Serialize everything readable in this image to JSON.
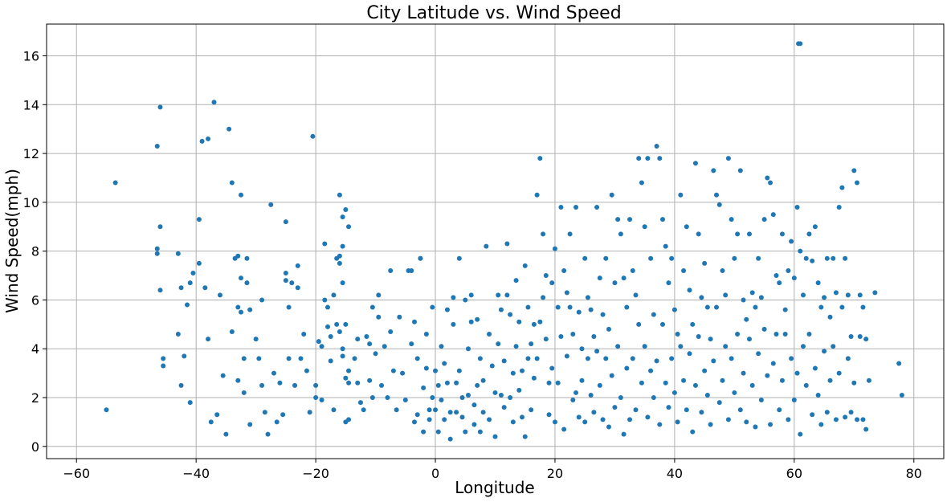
{
  "chart_data": {
    "type": "scatter",
    "title": "City Latitude vs. Wind Speed",
    "xlabel": "Longitude",
    "ylabel": "Wind Speed(mph)",
    "xlim": [
      -65,
      85
    ],
    "ylim": [
      -0.5,
      17.3
    ],
    "xticks": [
      -60,
      -40,
      -20,
      0,
      20,
      40,
      60,
      80
    ],
    "yticks": [
      0,
      2,
      4,
      6,
      8,
      10,
      12,
      14,
      16
    ],
    "grid": true,
    "marker_color": "#1f77b4",
    "points": [
      [
        -55,
        1.5
      ],
      [
        -53.5,
        10.8
      ],
      [
        -46.5,
        12.3
      ],
      [
        -46.5,
        8.1
      ],
      [
        -46.5,
        7.9
      ],
      [
        -46,
        13.9
      ],
      [
        -46,
        9.0
      ],
      [
        -46,
        6.4
      ],
      [
        -45.5,
        3.6
      ],
      [
        -45.5,
        3.3
      ],
      [
        -43,
        7.9
      ],
      [
        -43,
        4.6
      ],
      [
        -42.5,
        6.5
      ],
      [
        -42.5,
        2.5
      ],
      [
        -42,
        3.7
      ],
      [
        -41.5,
        5.8
      ],
      [
        -41,
        6.7
      ],
      [
        -41,
        1.8
      ],
      [
        -40.5,
        7.1
      ],
      [
        -39.5,
        9.3
      ],
      [
        -39.5,
        7.5
      ],
      [
        -39,
        12.5
      ],
      [
        -38.5,
        6.5
      ],
      [
        -38,
        12.6
      ],
      [
        -38,
        4.4
      ],
      [
        -37.5,
        1.0
      ],
      [
        -37,
        14.1
      ],
      [
        -36.5,
        1.3
      ],
      [
        -36,
        6.2
      ],
      [
        -35.5,
        2.9
      ],
      [
        -35,
        0.5
      ],
      [
        -34.5,
        13.0
      ],
      [
        -34,
        10.8
      ],
      [
        -34,
        4.7
      ],
      [
        -33.5,
        7.7
      ],
      [
        -33,
        7.8
      ],
      [
        -33,
        5.7
      ],
      [
        -33,
        2.7
      ],
      [
        -32.5,
        10.3
      ],
      [
        -32.5,
        6.9
      ],
      [
        -32.5,
        5.5
      ],
      [
        -32,
        3.6
      ],
      [
        -32,
        2.2
      ],
      [
        -31.5,
        7.7
      ],
      [
        -31.5,
        6.7
      ],
      [
        -31,
        5.6
      ],
      [
        -31,
        0.9
      ],
      [
        -30,
        4.4
      ],
      [
        -29.5,
        3.6
      ],
      [
        -29,
        6.0
      ],
      [
        -29,
        2.5
      ],
      [
        -28.5,
        1.4
      ],
      [
        -28,
        0.5
      ],
      [
        -27.5,
        9.9
      ],
      [
        -27,
        3.0
      ],
      [
        -26.5,
        1.0
      ],
      [
        -26,
        2.6
      ],
      [
        -25.5,
        1.3
      ],
      [
        -25,
        9.2
      ],
      [
        -25,
        7.1
      ],
      [
        -25,
        6.8
      ],
      [
        -24.5,
        5.7
      ],
      [
        -24.5,
        3.6
      ],
      [
        -24,
        6.7
      ],
      [
        -23.5,
        2.5
      ],
      [
        -23,
        7.4
      ],
      [
        -23,
        6.5
      ],
      [
        -22.5,
        3.6
      ],
      [
        -22,
        4.6
      ],
      [
        -21.5,
        3.1
      ],
      [
        -21,
        1.4
      ],
      [
        -20.5,
        12.7
      ],
      [
        -20,
        2.5
      ],
      [
        -20,
        2.0
      ],
      [
        -19.5,
        4.3
      ],
      [
        -19,
        4.1
      ],
      [
        -19,
        1.9
      ],
      [
        -18.5,
        8.3
      ],
      [
        -18.5,
        6.0
      ],
      [
        -18,
        5.7
      ],
      [
        -18,
        4.9
      ],
      [
        -17.5,
        4.5
      ],
      [
        -17.5,
        3.5
      ],
      [
        -17,
        6.2
      ],
      [
        -17,
        1.5
      ],
      [
        -16.5,
        7.7
      ],
      [
        -16.5,
        5.0
      ],
      [
        -16,
        10.3
      ],
      [
        -16,
        7.8
      ],
      [
        -16,
        7.5
      ],
      [
        -16,
        4.7
      ],
      [
        -15.5,
        9.4
      ],
      [
        -15.5,
        8.2
      ],
      [
        -15.5,
        6.7
      ],
      [
        -15.5,
        4.0
      ],
      [
        -15.5,
        3.7
      ],
      [
        -15,
        9.7
      ],
      [
        -15,
        5.0
      ],
      [
        -15,
        2.8
      ],
      [
        -15,
        1.0
      ],
      [
        -14.5,
        9.0
      ],
      [
        -14.5,
        3.1
      ],
      [
        -14.5,
        2.6
      ],
      [
        -14.5,
        1.1
      ],
      [
        -13.5,
        3.6
      ],
      [
        -13,
        2.6
      ],
      [
        -13,
        4.4
      ],
      [
        -12.5,
        1.8
      ],
      [
        -12,
        1.5
      ],
      [
        -11.5,
        4.5
      ],
      [
        -11,
        4.2
      ],
      [
        -11,
        2.7
      ],
      [
        -10.5,
        5.7
      ],
      [
        -10.5,
        2.0
      ],
      [
        -10,
        3.8
      ],
      [
        -9.5,
        6.2
      ],
      [
        -9.5,
        5.3
      ],
      [
        -9,
        2.5
      ],
      [
        -8.5,
        4.1
      ],
      [
        -8,
        2.0
      ],
      [
        -7.5,
        7.2
      ],
      [
        -7.5,
        4.7
      ],
      [
        -7,
        3.1
      ],
      [
        -6.5,
        1.5
      ],
      [
        -6,
        5.3
      ],
      [
        -5.5,
        3.0
      ],
      [
        -5,
        1.9
      ],
      [
        -4.5,
        7.2
      ],
      [
        -4,
        7.2
      ],
      [
        -4,
        4.2
      ],
      [
        -3.5,
        5.1
      ],
      [
        -3.5,
        1.0
      ],
      [
        -3,
        3.6
      ],
      [
        -3,
        1.3
      ],
      [
        -2.5,
        7.7
      ],
      [
        -2.5,
        7.7
      ],
      [
        -2,
        2.4
      ],
      [
        -2,
        0.6
      ],
      [
        -1.5,
        4.6
      ],
      [
        -1.5,
        3.2
      ],
      [
        -1,
        1.5
      ],
      [
        -1,
        1.1
      ],
      [
        -0.5,
        2.0
      ],
      [
        -0.5,
        5.7
      ],
      [
        0,
        3.1
      ],
      [
        0,
        1.5
      ],
      [
        0.5,
        2.5
      ],
      [
        0.5,
        0.6
      ],
      [
        1,
        4.1
      ],
      [
        1,
        1.9
      ],
      [
        1.5,
        3.4
      ],
      [
        1.5,
        1.1
      ],
      [
        2,
        5.6
      ],
      [
        2,
        2.6
      ],
      [
        2.5,
        1.4
      ],
      [
        2.5,
        0.3
      ],
      [
        3,
        6.1
      ],
      [
        3,
        5.0
      ],
      [
        3.5,
        2.6
      ],
      [
        3.5,
        1.4
      ],
      [
        4,
        7.7
      ],
      [
        4,
        3.1
      ],
      [
        4.5,
        2.0
      ],
      [
        4.5,
        1.2
      ],
      [
        5,
        6.0
      ],
      [
        5,
        0.6
      ],
      [
        5.5,
        4.0
      ],
      [
        5.5,
        2.1
      ],
      [
        6,
        6.2
      ],
      [
        6,
        5.1
      ],
      [
        6.5,
        1.7
      ],
      [
        6.5,
        0.9
      ],
      [
        7,
        5.2
      ],
      [
        7,
        2.5
      ],
      [
        7.5,
        3.6
      ],
      [
        7.5,
        0.6
      ],
      [
        8,
        2.7
      ],
      [
        8,
        1.4
      ],
      [
        8.5,
        8.2
      ],
      [
        9,
        4.6
      ],
      [
        9,
        1.1
      ],
      [
        9.5,
        3.3
      ],
      [
        10,
        2.2
      ],
      [
        10,
        0.4
      ],
      [
        10.5,
        6.2
      ],
      [
        10.5,
        4.2
      ],
      [
        11,
        5.6
      ],
      [
        11,
        2.1
      ],
      [
        11.5,
        3.5
      ],
      [
        11.5,
        1.6
      ],
      [
        12,
        8.3
      ],
      [
        12,
        6.2
      ],
      [
        12.5,
        5.4
      ],
      [
        12.5,
        2.0
      ],
      [
        13,
        3.0
      ],
      [
        13,
        1.0
      ],
      [
        13.5,
        6.8
      ],
      [
        13.5,
        4.1
      ],
      [
        14,
        5.1
      ],
      [
        14,
        2.3
      ],
      [
        14.5,
        3.1
      ],
      [
        14.5,
        1.2
      ],
      [
        15,
        7.4
      ],
      [
        15,
        0.4
      ],
      [
        15.5,
        5.7
      ],
      [
        15.5,
        3.6
      ],
      [
        16,
        4.2
      ],
      [
        16,
        1.5
      ],
      [
        16.5,
        5.0
      ],
      [
        16.5,
        2.8
      ],
      [
        17,
        10.3
      ],
      [
        17,
        3.6
      ],
      [
        17.5,
        11.8
      ],
      [
        17.5,
        5.1
      ],
      [
        18,
        8.7
      ],
      [
        18,
        6.1
      ],
      [
        18.5,
        7.0
      ],
      [
        18.5,
        4.4
      ],
      [
        19,
        2.6
      ],
      [
        19,
        1.3
      ],
      [
        19.5,
        6.7
      ],
      [
        19.5,
        3.2
      ],
      [
        20,
        8.1
      ],
      [
        20,
        1.0
      ],
      [
        20.5,
        5.7
      ],
      [
        20.5,
        2.6
      ],
      [
        21,
        9.8
      ],
      [
        21,
        4.5
      ],
      [
        21.5,
        7.2
      ],
      [
        21.5,
        0.7
      ],
      [
        22,
        6.3
      ],
      [
        22,
        3.7
      ],
      [
        22.5,
        8.7
      ],
      [
        22.5,
        5.7
      ],
      [
        23,
        4.6
      ],
      [
        23,
        1.9
      ],
      [
        23.5,
        9.8
      ],
      [
        23.5,
        2.2
      ],
      [
        24,
        5.5
      ],
      [
        24,
        1.2
      ],
      [
        24.5,
        4.0
      ],
      [
        24.5,
        2.7
      ],
      [
        25,
        7.7
      ],
      [
        25,
        1.0
      ],
      [
        25.5,
        6.1
      ],
      [
        25.5,
        3.6
      ],
      [
        26,
        5.6
      ],
      [
        26,
        2.1
      ],
      [
        26.5,
        4.5
      ],
      [
        26.5,
        1.4
      ],
      [
        27,
        9.8
      ],
      [
        27,
        3.9
      ],
      [
        27.5,
        6.9
      ],
      [
        27.5,
        2.5
      ],
      [
        28,
        5.4
      ],
      [
        28,
        1.1
      ],
      [
        28.5,
        7.7
      ],
      [
        28.5,
        3.6
      ],
      [
        29,
        4.8
      ],
      [
        29,
        0.8
      ],
      [
        29.5,
        10.3
      ],
      [
        29.5,
        2.9
      ],
      [
        30,
        6.7
      ],
      [
        30,
        1.6
      ],
      [
        30.5,
        9.3
      ],
      [
        30.5,
        4.1
      ],
      [
        31,
        8.7
      ],
      [
        31,
        2.0
      ],
      [
        31.5,
        6.9
      ],
      [
        31.5,
        0.5
      ],
      [
        32,
        5.7
      ],
      [
        32,
        3.2
      ],
      [
        32.5,
        9.3
      ],
      [
        32.5,
        1.1
      ],
      [
        33,
        7.2
      ],
      [
        33,
        3.6
      ],
      [
        33.5,
        6.2
      ],
      [
        33.5,
        1.5
      ],
      [
        34,
        11.8
      ],
      [
        34,
        5.0
      ],
      [
        34.5,
        10.8
      ],
      [
        34.5,
        2.6
      ],
      [
        35,
        9.0
      ],
      [
        35,
        4.1
      ],
      [
        35.5,
        11.8
      ],
      [
        35.5,
        1.2
      ],
      [
        36,
        7.7
      ],
      [
        36,
        3.1
      ],
      [
        36.5,
        5.4
      ],
      [
        36.5,
        2.0
      ],
      [
        37,
        12.3
      ],
      [
        37,
        3.5
      ],
      [
        37.5,
        11.8
      ],
      [
        37.5,
        0.9
      ],
      [
        38,
        9.3
      ],
      [
        38,
        5.0
      ],
      [
        38.5,
        8.2
      ],
      [
        38.5,
        2.6
      ],
      [
        39,
        6.7
      ],
      [
        39,
        1.6
      ],
      [
        39.5,
        7.7
      ],
      [
        39.5,
        3.6
      ],
      [
        40,
        5.6
      ],
      [
        40,
        2.2
      ],
      [
        40.5,
        4.6
      ],
      [
        40.5,
        1.0
      ],
      [
        41,
        10.3
      ],
      [
        41,
        4.1
      ],
      [
        41.5,
        7.2
      ],
      [
        41.5,
        2.7
      ],
      [
        42,
        9.0
      ],
      [
        42,
        1.5
      ],
      [
        42.5,
        6.4
      ],
      [
        42.5,
        3.8
      ],
      [
        43,
        5.0
      ],
      [
        43,
        0.6
      ],
      [
        43.5,
        11.6
      ],
      [
        43.5,
        2.5
      ],
      [
        44,
        8.7
      ],
      [
        44,
        4.5
      ],
      [
        44.5,
        6.1
      ],
      [
        44.5,
        1.4
      ],
      [
        45,
        7.5
      ],
      [
        45,
        3.1
      ],
      [
        45.5,
        5.7
      ],
      [
        45.5,
        2.1
      ],
      [
        46,
        4.4
      ],
      [
        46,
        0.9
      ],
      [
        46.5,
        11.3
      ],
      [
        46.5,
        3.5
      ],
      [
        47,
        10.3
      ],
      [
        47,
        5.7
      ],
      [
        47.5,
        9.9
      ],
      [
        47.5,
        1.8
      ],
      [
        48,
        7.2
      ],
      [
        48,
        2.7
      ],
      [
        48.5,
        6.2
      ],
      [
        48.5,
        4.1
      ],
      [
        49,
        11.8
      ],
      [
        49,
        1.1
      ],
      [
        49.5,
        9.3
      ],
      [
        49.5,
        3.6
      ],
      [
        50,
        7.7
      ],
      [
        50,
        2.2
      ],
      [
        50.5,
        8.7
      ],
      [
        50.5,
        4.6
      ],
      [
        51,
        11.3
      ],
      [
        51,
        1.5
      ],
      [
        51.5,
        6.0
      ],
      [
        51.5,
        3.0
      ],
      [
        52,
        5.2
      ],
      [
        52,
        1.0
      ],
      [
        52.5,
        8.7
      ],
      [
        52.5,
        4.4
      ],
      [
        53,
        6.3
      ],
      [
        53,
        2.5
      ],
      [
        53.5,
        5.7
      ],
      [
        53.5,
        0.8
      ],
      [
        54,
        7.7
      ],
      [
        54,
        3.8
      ],
      [
        54.5,
        6.1
      ],
      [
        54.5,
        1.9
      ],
      [
        55,
        9.3
      ],
      [
        55,
        4.8
      ],
      [
        55.5,
        11.0
      ],
      [
        55.5,
        2.9
      ],
      [
        56,
        10.8
      ],
      [
        56,
        0.9
      ],
      [
        56.5,
        9.5
      ],
      [
        56.5,
        3.4
      ],
      [
        57,
        7.0
      ],
      [
        57,
        4.6
      ],
      [
        57.5,
        6.7
      ],
      [
        57.5,
        1.5
      ],
      [
        58,
        8.7
      ],
      [
        58,
        2.7
      ],
      [
        58.5,
        5.6
      ],
      [
        58.5,
        4.6
      ],
      [
        59,
        7.2
      ],
      [
        59,
        1.1
      ],
      [
        59.5,
        8.4
      ],
      [
        59.5,
        3.6
      ],
      [
        60,
        6.9
      ],
      [
        60,
        1.9
      ],
      [
        60.5,
        9.8
      ],
      [
        60.5,
        3.0
      ],
      [
        60.7,
        16.5
      ],
      [
        61,
        16.5
      ],
      [
        61,
        8.0
      ],
      [
        61,
        0.5
      ],
      [
        61.5,
        6.2
      ],
      [
        61.5,
        4.1
      ],
      [
        62,
        7.7
      ],
      [
        62,
        2.5
      ],
      [
        62.5,
        8.7
      ],
      [
        62.5,
        4.6
      ],
      [
        63,
        7.6
      ],
      [
        63,
        1.3
      ],
      [
        63.5,
        9.0
      ],
      [
        63.5,
        3.2
      ],
      [
        64,
        6.7
      ],
      [
        64,
        2.1
      ],
      [
        64.5,
        5.7
      ],
      [
        64.5,
        0.9
      ],
      [
        65,
        6.1
      ],
      [
        65,
        3.9
      ],
      [
        65.5,
        7.7
      ],
      [
        65.5,
        1.4
      ],
      [
        66,
        5.3
      ],
      [
        66,
        2.7
      ],
      [
        66.5,
        7.7
      ],
      [
        66.5,
        4.1
      ],
      [
        67,
        6.3
      ],
      [
        67,
        1.1
      ],
      [
        67.5,
        9.8
      ],
      [
        67.5,
        3.0
      ],
      [
        68,
        10.6
      ],
      [
        68,
        5.7
      ],
      [
        68.5,
        7.7
      ],
      [
        68.5,
        1.2
      ],
      [
        69,
        6.2
      ],
      [
        69,
        3.6
      ],
      [
        69.5,
        4.5
      ],
      [
        69.5,
        1.4
      ],
      [
        70,
        11.3
      ],
      [
        70,
        2.6
      ],
      [
        70.5,
        10.8
      ],
      [
        70.5,
        1.1
      ],
      [
        71,
        6.2
      ],
      [
        71,
        4.5
      ],
      [
        71.5,
        5.7
      ],
      [
        71.5,
        1.1
      ],
      [
        72,
        4.4
      ],
      [
        72,
        0.7
      ],
      [
        72.5,
        2.7
      ],
      [
        73.5,
        6.3
      ],
      [
        77.5,
        3.4
      ],
      [
        78,
        2.1
      ]
    ]
  }
}
